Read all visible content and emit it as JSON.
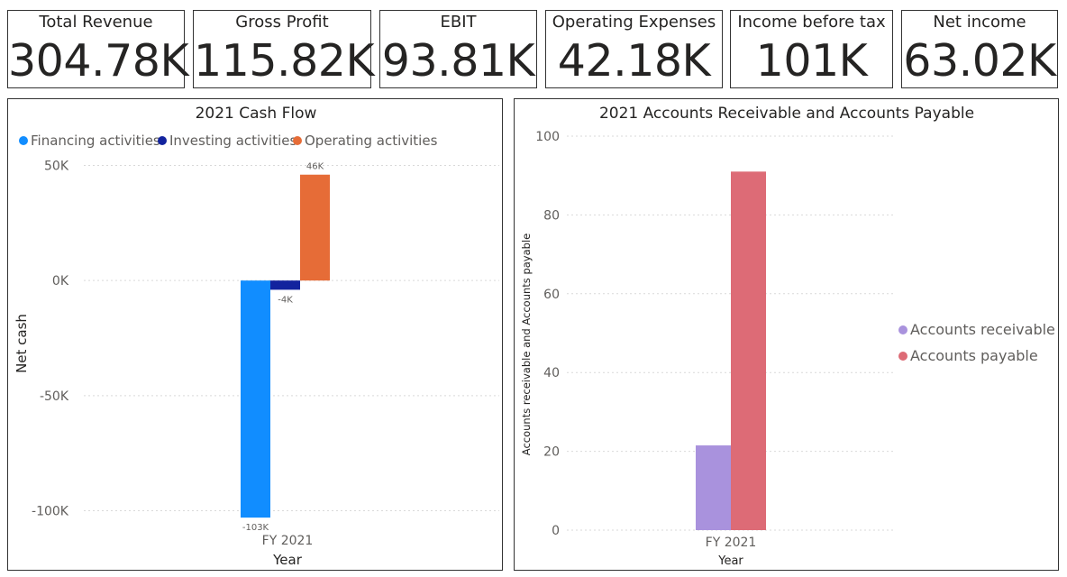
{
  "kpis": [
    {
      "label": "Total Revenue",
      "value": "304.78K"
    },
    {
      "label": "Gross Profit",
      "value": "115.82K"
    },
    {
      "label": "EBIT",
      "value": "93.81K"
    },
    {
      "label": "Operating Expenses",
      "value": "42.18K"
    },
    {
      "label": "Income before tax",
      "value": "101K"
    },
    {
      "label": "Net income",
      "value": "63.02K"
    }
  ],
  "chart_data": [
    {
      "type": "bar",
      "title": "2021 Cash Flow",
      "xlabel": "Year",
      "ylabel": "Net cash",
      "categories": [
        "FY 2021"
      ],
      "series": [
        {
          "name": "Financing activities",
          "values": [
            -103
          ],
          "label": "-103K",
          "color": "#118DFF"
        },
        {
          "name": "Investing activities",
          "values": [
            -4
          ],
          "label": "-4K",
          "color": "#12239E"
        },
        {
          "name": "Operating activities",
          "values": [
            46
          ],
          "label": "46K",
          "color": "#E66C37"
        }
      ],
      "ylim": [
        -110,
        60
      ],
      "yticks": [
        50,
        0,
        -50,
        -100
      ],
      "ytick_labels": [
        "50K",
        "0K",
        "-50K",
        "-100K"
      ],
      "legend_position": "top-left",
      "grid": true
    },
    {
      "type": "bar",
      "title": "2021 Accounts Receivable and Accounts Payable",
      "xlabel": "Year",
      "ylabel": "Accounts receivable and Accounts payable",
      "categories": [
        "FY 2021"
      ],
      "series": [
        {
          "name": "Accounts receivable",
          "values": [
            21.5
          ],
          "color": "#A992DD"
        },
        {
          "name": "Accounts payable",
          "values": [
            91
          ],
          "color": "#DD6B76"
        }
      ],
      "ylim": [
        0,
        100
      ],
      "yticks": [
        0,
        20,
        40,
        60,
        80,
        100
      ],
      "ytick_labels": [
        "0",
        "20",
        "40",
        "60",
        "80",
        "100"
      ],
      "legend_position": "right",
      "grid": true
    }
  ]
}
